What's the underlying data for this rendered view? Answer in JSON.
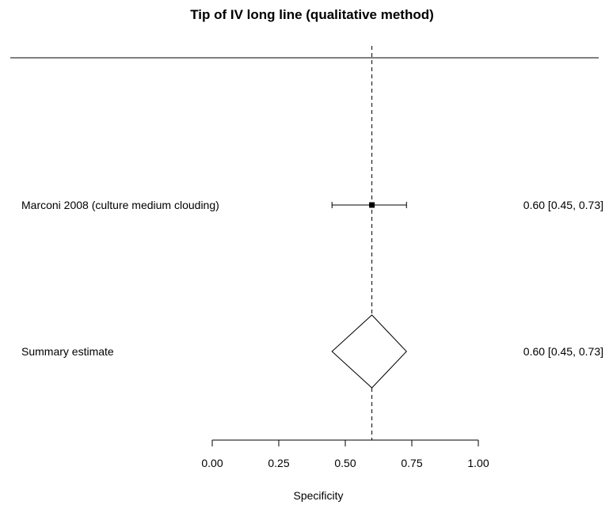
{
  "chart_data": {
    "type": "forest",
    "title": "Tip of IV long line (qualitative method)",
    "xlabel": "Specificity",
    "xlim": [
      0,
      1
    ],
    "xticks": [
      0,
      0.25,
      0.5,
      0.75,
      1
    ],
    "xtick_labels": [
      "0.00",
      "0.25",
      "0.50",
      "0.75",
      "1.00"
    ],
    "reference_line": 0.6,
    "studies": [
      {
        "label": "Marconi 2008 (culture medium clouding)",
        "estimate": 0.6,
        "lower": 0.45,
        "upper": 0.73,
        "ci_text": "0.60 [0.45, 0.73]"
      }
    ],
    "summary": {
      "label": "Summary estimate",
      "estimate": 0.6,
      "lower": 0.45,
      "upper": 0.73,
      "ci_text": "0.60 [0.45, 0.73]"
    }
  }
}
